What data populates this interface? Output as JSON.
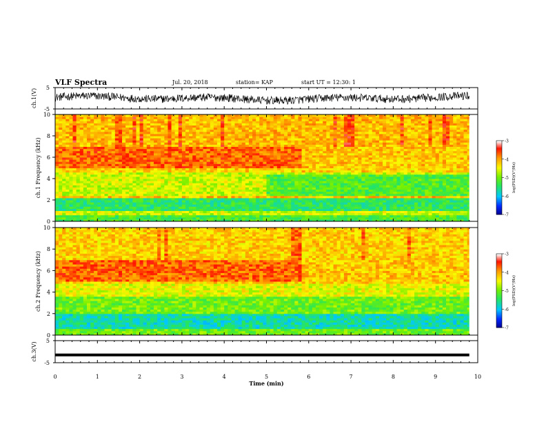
{
  "header": {
    "title": "VLF Spectra",
    "date": "Jul. 20, 2018",
    "station": "station= KAP",
    "start": "start UT = 12:30: 1"
  },
  "chart_data": [
    {
      "type": "line",
      "panel": "ch1-waveform",
      "ylabel": "ch.1(V)",
      "ylim": [
        -5,
        5
      ],
      "yticks": [
        "5",
        "-5"
      ],
      "xlim": [
        0,
        10
      ],
      "series_color": "#000000",
      "note_values": "waveform fluctuates roughly between -3 and 4 V",
      "envelope_min": -3,
      "envelope_max": 4
    },
    {
      "type": "heatmap",
      "panel": "ch1-spectrogram",
      "ylabel": "ch.1 Frequency (kHz)",
      "ylim": [
        0,
        10
      ],
      "yticks": [
        "0",
        "2",
        "4",
        "6",
        "8",
        "10"
      ],
      "xlim": [
        0,
        10
      ],
      "colorbar": {
        "label": "log(PSD)(V²/Hz)",
        "range": [
          -7,
          -3
        ],
        "ticks": [
          "-3",
          "-4",
          "-5",
          "-6",
          "-7"
        ]
      },
      "bands": [
        {
          "f_from": 0.0,
          "f_to": 0.5,
          "level": -5.2
        },
        {
          "f_from": 0.5,
          "f_to": 1.0,
          "level": -4.6
        },
        {
          "f_from": 1.0,
          "f_to": 2.1,
          "level": -5.4
        },
        {
          "f_from": 2.1,
          "f_to": 2.4,
          "level": -4.1
        },
        {
          "f_from": 2.4,
          "f_to": 4.5,
          "level": -4.6
        },
        {
          "f_from": 4.5,
          "f_to": 5.0,
          "level": -4.2
        },
        {
          "f_from": 5.0,
          "f_to": 7.0,
          "level": -3.7
        },
        {
          "f_from": 7.0,
          "f_to": 10.0,
          "level": -4.1
        }
      ],
      "time_trend": "emission band 5-7 kHz weakens after ~5.8 min; 2.5-4.5 kHz turns greener after ~5 min"
    },
    {
      "type": "heatmap",
      "panel": "ch2-spectrogram",
      "ylabel": "ch.2 Frequency (kHz)",
      "ylim": [
        0,
        10
      ],
      "yticks": [
        "0",
        "2",
        "4",
        "6",
        "8",
        "10"
      ],
      "xlim": [
        0,
        10
      ],
      "colorbar": {
        "label": "log(PSD)(V²/Hz)",
        "range": [
          -7,
          -3
        ],
        "ticks": [
          "-3",
          "-4",
          "-5",
          "-6",
          "-7"
        ]
      },
      "bands": [
        {
          "f_from": 0.0,
          "f_to": 0.5,
          "level": -5.0
        },
        {
          "f_from": 0.5,
          "f_to": 2.0,
          "level": -5.7
        },
        {
          "f_from": 2.0,
          "f_to": 3.5,
          "level": -5.0
        },
        {
          "f_from": 3.5,
          "f_to": 4.7,
          "level": -4.5
        },
        {
          "f_from": 4.7,
          "f_to": 5.0,
          "level": -4.2
        },
        {
          "f_from": 5.0,
          "f_to": 7.0,
          "level": -3.7
        },
        {
          "f_from": 7.0,
          "f_to": 10.0,
          "level": -4.2
        }
      ],
      "time_trend": "emission band 5-7 kHz weakens after ~5.8 min"
    },
    {
      "type": "line",
      "panel": "ch3-waveform",
      "ylabel": "ch.3(V)",
      "ylim": [
        -5,
        5
      ],
      "yticks": [
        "5",
        "-5"
      ],
      "xlim": [
        0,
        10
      ],
      "xlabel": "Time (min)",
      "xticks": [
        "0",
        "1",
        "2",
        "3",
        "4",
        "5",
        "6",
        "7",
        "8",
        "9",
        "10"
      ],
      "constant_value": -1.5,
      "data_end_min": 9.8
    }
  ]
}
